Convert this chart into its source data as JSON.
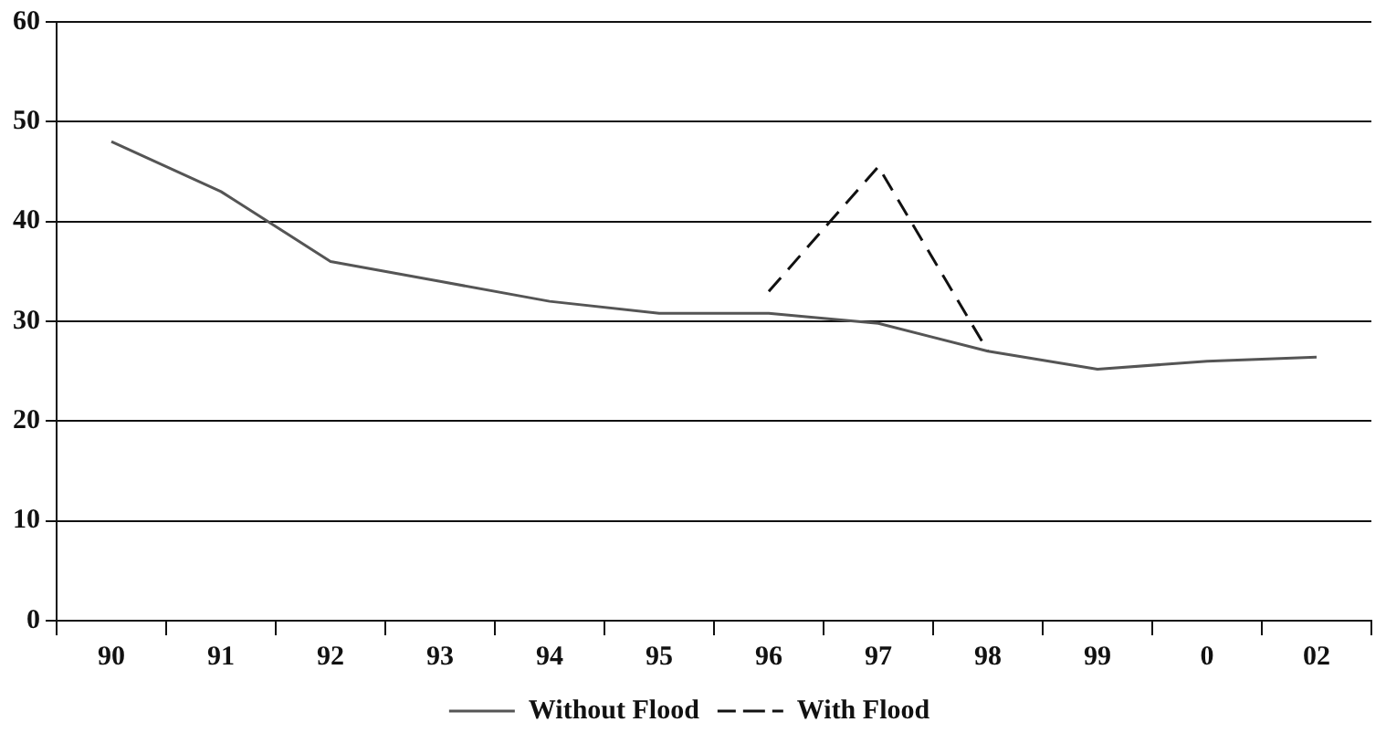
{
  "chart_data": {
    "type": "line",
    "categories": [
      "90",
      "91",
      "92",
      "93",
      "94",
      "95",
      "96",
      "97",
      "98",
      "99",
      "0",
      "02"
    ],
    "series": [
      {
        "name": "Without Flood",
        "color": "#555555",
        "line_style": "solid",
        "values": [
          48,
          43,
          36,
          34,
          32,
          30.8,
          30.8,
          29.8,
          27,
          25.2,
          26,
          26.4
        ]
      },
      {
        "name": "With Flood",
        "color": "#111111",
        "line_style": "dashed",
        "values": [
          null,
          null,
          null,
          null,
          null,
          null,
          33,
          45.5,
          27,
          null,
          null,
          null
        ]
      }
    ],
    "ylim": [
      0,
      60
    ],
    "yticks": [
      0,
      10,
      20,
      30,
      40,
      50,
      60
    ],
    "grid": "y",
    "legend": "bottom",
    "marker": "none"
  }
}
